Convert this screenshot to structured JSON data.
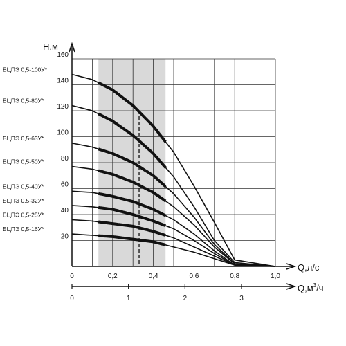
{
  "chart_data": {
    "type": "line",
    "y_axis": {
      "label": "H,м",
      "ticks": [
        "20",
        "40",
        "60",
        "80",
        "100",
        "120",
        "140",
        "160"
      ],
      "range": [
        0,
        160
      ]
    },
    "x_axis": {
      "label": "Q,л/с",
      "ticks": [
        "0",
        "0,2",
        "0,4",
        "0,6",
        "0,8",
        "1,0"
      ],
      "range": [
        0,
        1.0
      ]
    },
    "x_axis_secondary": {
      "label_main": "Q,м",
      "label_sup": "3",
      "label_tail": "/ч",
      "ticks": [
        "0",
        "1",
        "2",
        "3"
      ],
      "range": [
        0,
        3.6
      ]
    },
    "grid": true,
    "recommended_range": {
      "x": [
        0.13,
        0.46
      ],
      "shaded": true
    },
    "optimal_q": 0.33,
    "series": [
      {
        "name": "БЦПЭ 0,5-100У*",
        "points": [
          [
            0,
            148
          ],
          [
            0.1,
            144
          ],
          [
            0.2,
            136
          ],
          [
            0.3,
            124
          ],
          [
            0.4,
            108
          ],
          [
            0.5,
            88
          ],
          [
            0.6,
            62
          ],
          [
            0.7,
            34
          ],
          [
            0.8,
            5
          ]
        ],
        "bold_x": [
          0.13,
          0.46
        ]
      },
      {
        "name": "БЦПЭ 0,5-80У*",
        "points": [
          [
            0,
            124
          ],
          [
            0.1,
            120
          ],
          [
            0.2,
            112
          ],
          [
            0.3,
            101
          ],
          [
            0.4,
            87
          ],
          [
            0.5,
            69
          ],
          [
            0.6,
            46
          ],
          [
            0.7,
            20
          ],
          [
            0.8,
            3
          ]
        ],
        "bold_x": [
          0.13,
          0.46
        ]
      },
      {
        "name": "БЦПЭ 0,5-63У*",
        "points": [
          [
            0,
            95
          ],
          [
            0.1,
            92
          ],
          [
            0.2,
            87
          ],
          [
            0.3,
            80
          ],
          [
            0.4,
            70
          ],
          [
            0.5,
            56
          ],
          [
            0.6,
            38
          ],
          [
            0.7,
            17
          ],
          [
            0.8,
            2
          ]
        ],
        "bold_x": [
          0.13,
          0.46
        ]
      },
      {
        "name": "БЦПЭ 0,5-50У*",
        "points": [
          [
            0,
            77
          ],
          [
            0.1,
            75
          ],
          [
            0.2,
            71
          ],
          [
            0.3,
            65
          ],
          [
            0.4,
            57
          ],
          [
            0.5,
            46
          ],
          [
            0.6,
            32
          ],
          [
            0.7,
            15
          ],
          [
            0.8,
            2
          ]
        ],
        "bold_x": [
          0.13,
          0.46
        ]
      },
      {
        "name": "БЦПЭ 0,5-40У*",
        "points": [
          [
            0,
            58
          ],
          [
            0.1,
            57
          ],
          [
            0.2,
            54
          ],
          [
            0.3,
            50
          ],
          [
            0.4,
            44
          ],
          [
            0.5,
            36
          ],
          [
            0.6,
            25
          ],
          [
            0.7,
            12
          ],
          [
            0.8,
            1
          ]
        ],
        "bold_x": [
          0.13,
          0.46
        ]
      },
      {
        "name": "БЦПЭ 0,5-32У*",
        "points": [
          [
            0,
            47
          ],
          [
            0.1,
            46
          ],
          [
            0.2,
            44
          ],
          [
            0.3,
            40
          ],
          [
            0.4,
            35
          ],
          [
            0.5,
            29
          ],
          [
            0.6,
            20
          ],
          [
            0.7,
            10
          ],
          [
            0.8,
            1
          ]
        ],
        "bold_x": [
          0.13,
          0.46
        ]
      },
      {
        "name": "БЦПЭ 0,5-25У*",
        "points": [
          [
            0,
            36
          ],
          [
            0.1,
            35
          ],
          [
            0.2,
            33
          ],
          [
            0.3,
            31
          ],
          [
            0.4,
            27
          ],
          [
            0.5,
            22
          ],
          [
            0.6,
            15
          ],
          [
            0.7,
            8
          ],
          [
            0.8,
            1
          ]
        ],
        "bold_x": [
          0.13,
          0.46
        ]
      },
      {
        "name": "БЦПЭ 0,5-16У*",
        "points": [
          [
            0,
            25
          ],
          [
            0.1,
            24
          ],
          [
            0.2,
            23
          ],
          [
            0.3,
            21
          ],
          [
            0.4,
            19
          ],
          [
            0.5,
            15
          ],
          [
            0.6,
            11
          ],
          [
            0.7,
            6
          ],
          [
            0.8,
            1
          ]
        ],
        "bold_x": [
          0.13,
          0.46
        ]
      }
    ],
    "colors": {
      "line": "#111111",
      "grid": "#333333",
      "shade": "#d9d9d9"
    }
  }
}
